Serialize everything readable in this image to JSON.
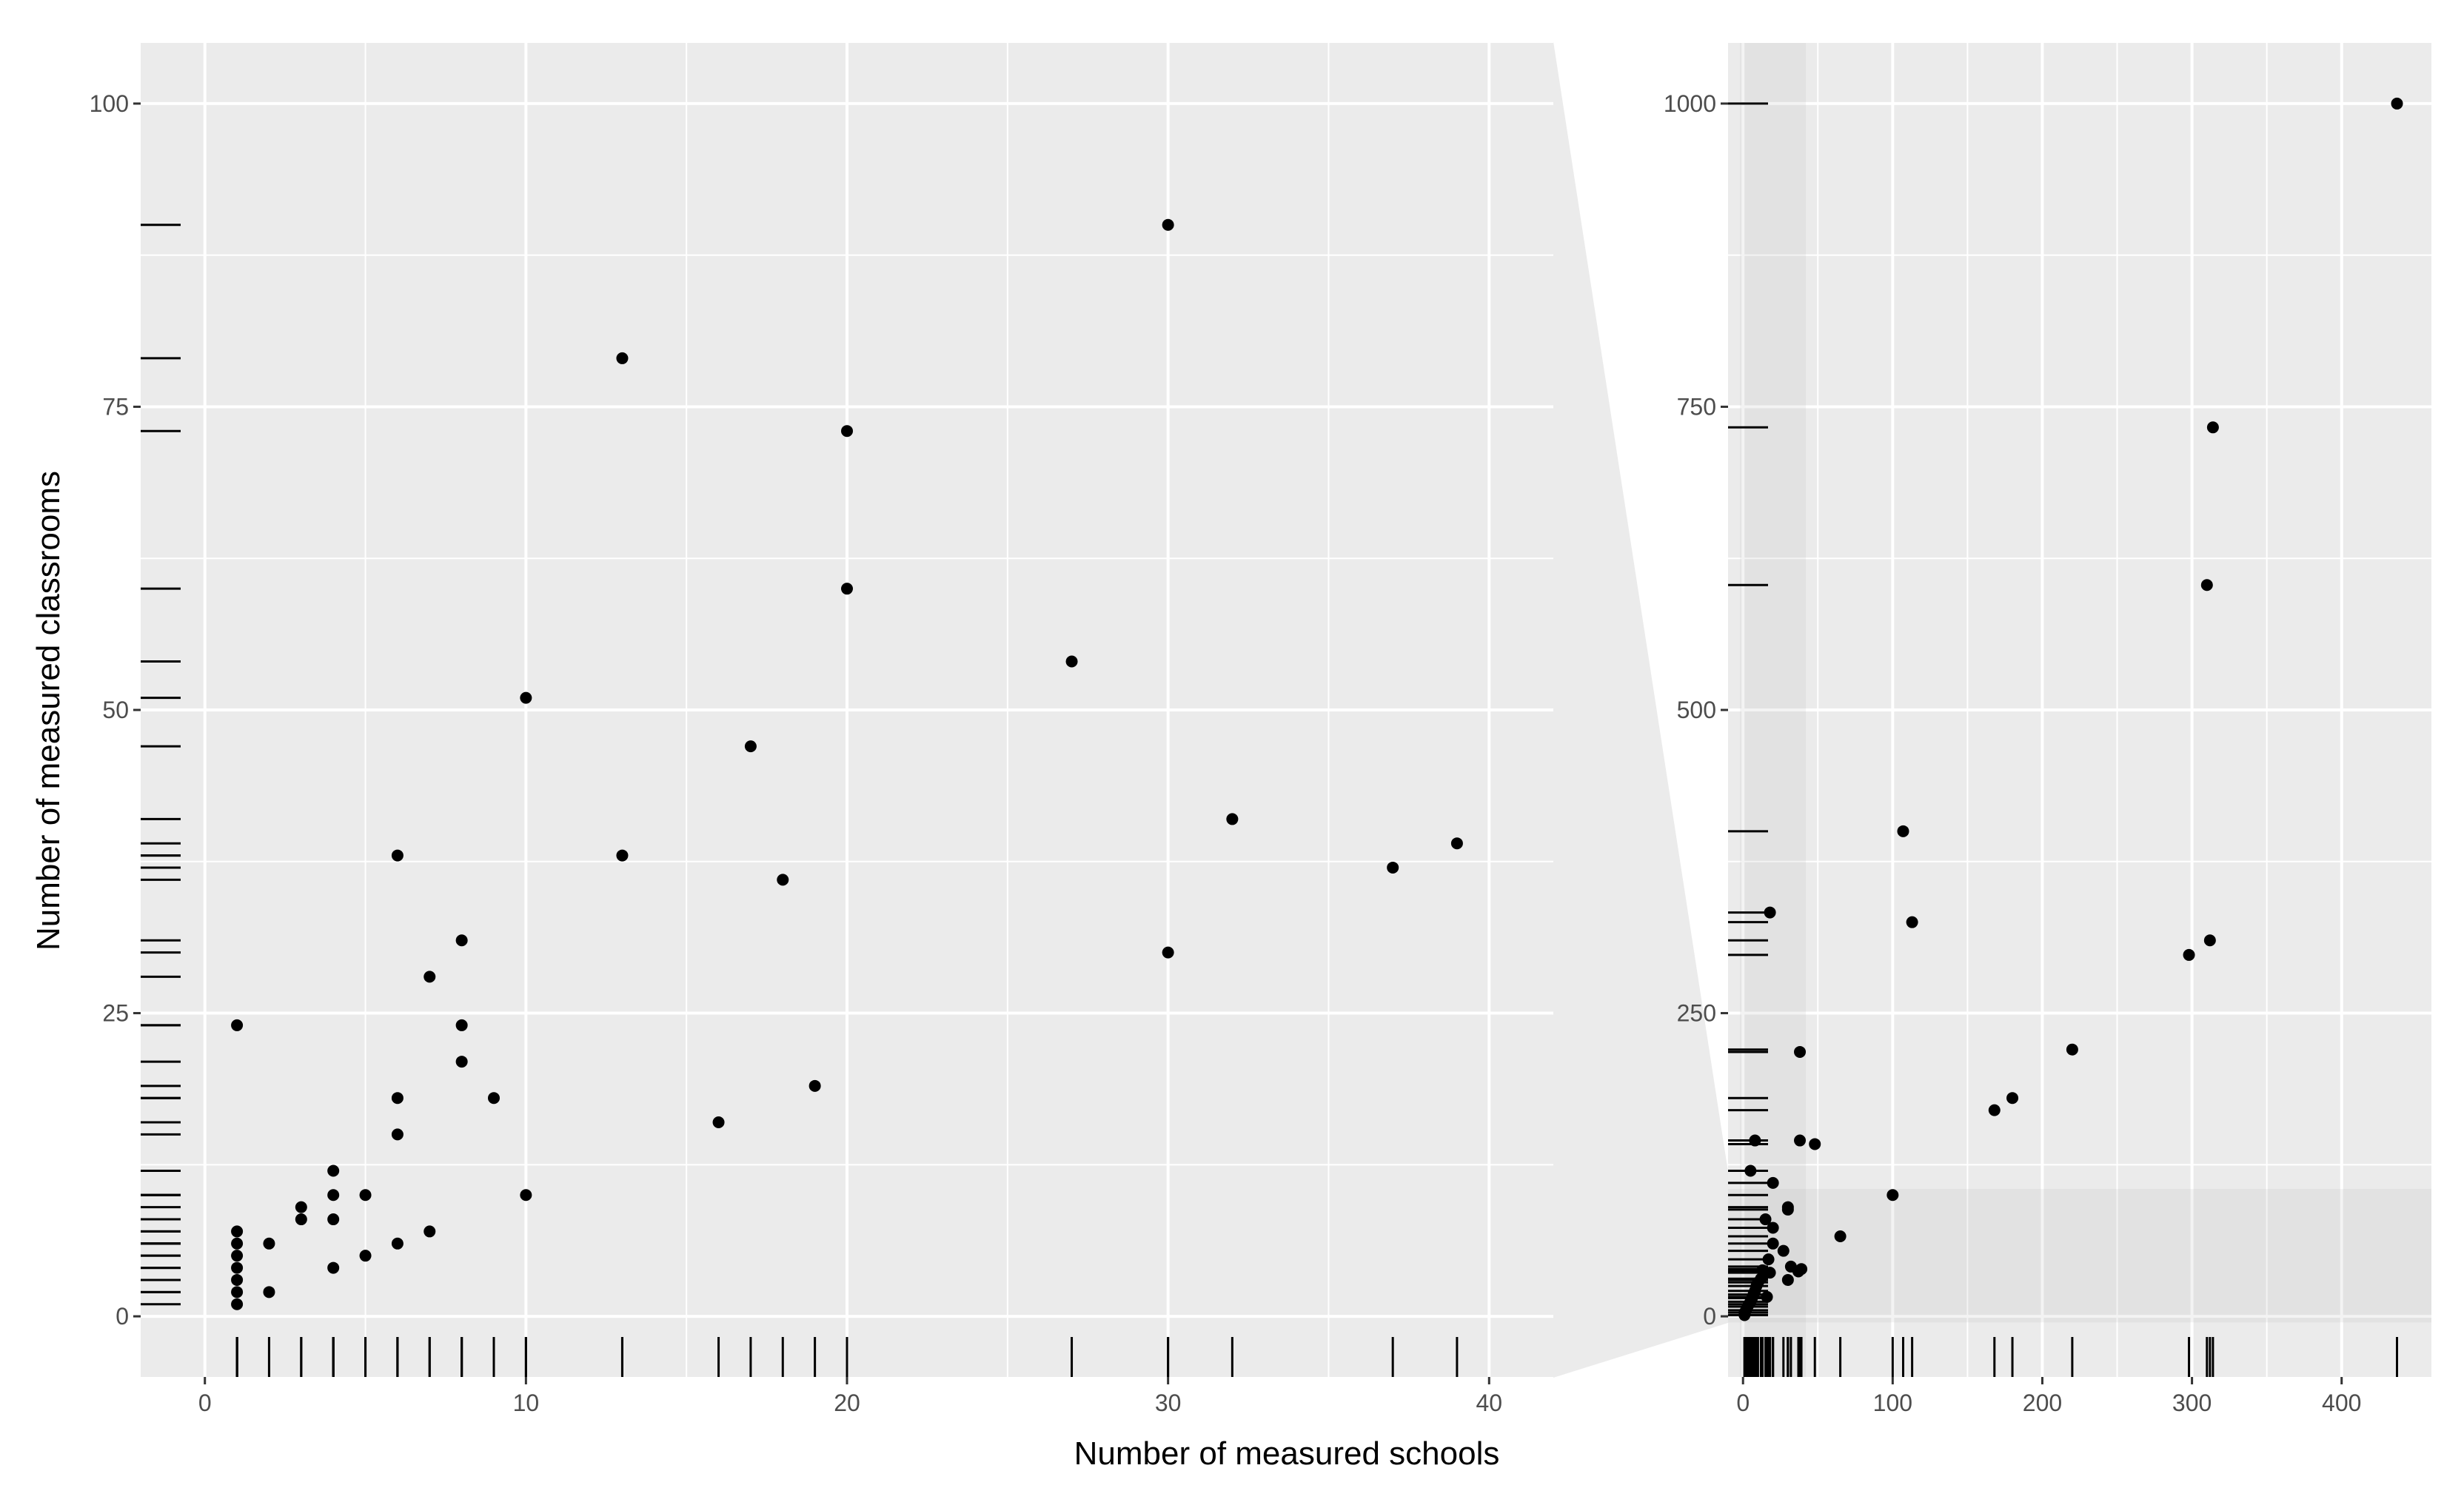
{
  "chart_data": [
    {
      "type": "scatter",
      "panel": "zoomed",
      "title": "",
      "xlabel": "Number of measured schools",
      "ylabel": "Number of measured classrooms",
      "xlim": [
        -2,
        42
      ],
      "ylim": [
        -5,
        105
      ],
      "x_ticks": [
        0,
        10,
        20,
        30,
        40
      ],
      "y_ticks": [
        0,
        25,
        50,
        75,
        100
      ],
      "grid": true,
      "legend": "none",
      "rug": true,
      "points": [
        [
          1,
          1
        ],
        [
          1,
          2
        ],
        [
          1,
          3
        ],
        [
          1,
          4
        ],
        [
          1,
          5
        ],
        [
          1,
          6
        ],
        [
          1,
          7
        ],
        [
          1,
          24
        ],
        [
          2,
          2
        ],
        [
          2,
          6
        ],
        [
          3,
          8
        ],
        [
          3,
          9
        ],
        [
          4,
          4
        ],
        [
          4,
          8
        ],
        [
          4,
          10
        ],
        [
          4,
          12
        ],
        [
          5,
          5
        ],
        [
          5,
          10
        ],
        [
          6,
          6
        ],
        [
          6,
          15
        ],
        [
          6,
          18
        ],
        [
          6,
          38
        ],
        [
          7,
          7
        ],
        [
          7,
          28
        ],
        [
          8,
          21
        ],
        [
          8,
          24
        ],
        [
          8,
          31
        ],
        [
          9,
          18
        ],
        [
          10,
          10
        ],
        [
          10,
          51
        ],
        [
          13,
          38
        ],
        [
          13,
          79
        ],
        [
          16,
          16
        ],
        [
          17,
          47
        ],
        [
          18,
          36
        ],
        [
          19,
          19
        ],
        [
          20,
          60
        ],
        [
          20,
          73
        ],
        [
          27,
          54
        ],
        [
          30,
          30
        ],
        [
          30,
          90
        ],
        [
          32,
          41
        ],
        [
          37,
          37
        ],
        [
          39,
          39
        ]
      ]
    },
    {
      "type": "scatter",
      "panel": "full",
      "title": "",
      "xlabel": "",
      "ylabel": "",
      "xlim": [
        -10,
        460
      ],
      "ylim": [
        -50,
        1050
      ],
      "x_ticks": [
        0,
        100,
        200,
        300,
        400
      ],
      "y_ticks": [
        0,
        250,
        500,
        750,
        1000
      ],
      "grid": true,
      "legend": "none",
      "rug": true,
      "zoom_region": {
        "x": [
          -2,
          42
        ],
        "y": [
          -5,
          105
        ]
      },
      "points": [
        [
          1,
          1
        ],
        [
          1,
          3
        ],
        [
          2,
          5
        ],
        [
          3,
          8
        ],
        [
          4,
          10
        ],
        [
          5,
          12
        ],
        [
          6,
          15
        ],
        [
          7,
          18
        ],
        [
          8,
          21
        ],
        [
          9,
          25
        ],
        [
          10,
          28
        ],
        [
          12,
          31
        ],
        [
          13,
          38
        ],
        [
          16,
          16
        ],
        [
          17,
          47
        ],
        [
          18,
          36
        ],
        [
          20,
          60
        ],
        [
          20,
          73
        ],
        [
          27,
          54
        ],
        [
          30,
          30
        ],
        [
          30,
          90
        ],
        [
          32,
          41
        ],
        [
          37,
          37
        ],
        [
          39,
          39
        ],
        [
          5,
          120
        ],
        [
          8,
          145
        ],
        [
          15,
          80
        ],
        [
          20,
          110
        ],
        [
          30,
          88
        ],
        [
          38,
          145
        ],
        [
          48,
          142
        ],
        [
          38,
          218
        ],
        [
          18,
          333
        ],
        [
          100,
          100
        ],
        [
          65,
          66
        ],
        [
          107,
          400
        ],
        [
          113,
          325
        ],
        [
          168,
          170
        ],
        [
          180,
          180
        ],
        [
          220,
          220
        ],
        [
          298,
          298
        ],
        [
          310,
          603
        ],
        [
          312,
          310
        ],
        [
          314,
          733
        ],
        [
          437,
          1000
        ]
      ]
    }
  ]
}
